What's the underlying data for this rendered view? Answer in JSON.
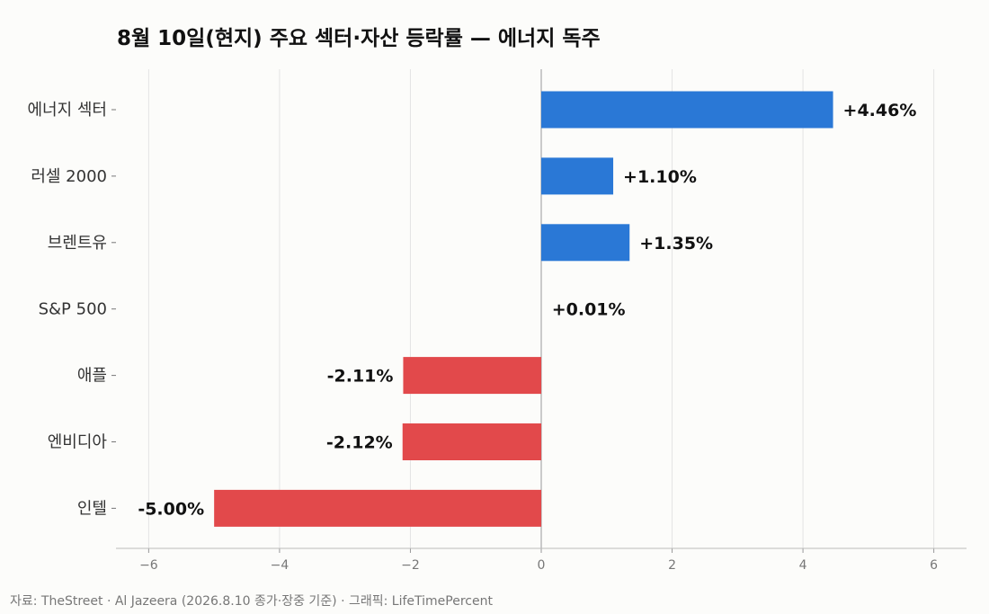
{
  "chart_data": {
    "type": "bar",
    "orientation": "horizontal",
    "title": "8월 10일(현지) 주요 섹터·자산 등락률 — 에너지 독주",
    "categories": [
      "에너지 섹터",
      "러셀 2000",
      "브렌트유",
      "S&P 500",
      "애플",
      "엔비디아",
      "인텔"
    ],
    "values": [
      4.46,
      1.1,
      1.35,
      0.01,
      -2.11,
      -2.12,
      -5.0
    ],
    "value_labels": [
      "+4.46%",
      "+1.10%",
      "+1.35%",
      "+0.01%",
      "-2.11%",
      "-2.12%",
      "-5.00%"
    ],
    "xlim": [
      -6.5,
      6.5
    ],
    "xticks": [
      -6,
      -4,
      -2,
      0,
      2,
      4,
      6
    ],
    "xtick_labels": [
      "−6",
      "−4",
      "−2",
      "0",
      "2",
      "4",
      "6"
    ],
    "grid": "vertical",
    "colors": {
      "positive": "#2a78d6",
      "negative": "#e2494b",
      "zero_line": "#aaaaaa",
      "grid": "#e4e4e4"
    },
    "source": "자료: TheStreet · Al Jazeera (2026.8.10 종가·장중 기준) · 그래픽: LifeTimePercent"
  }
}
